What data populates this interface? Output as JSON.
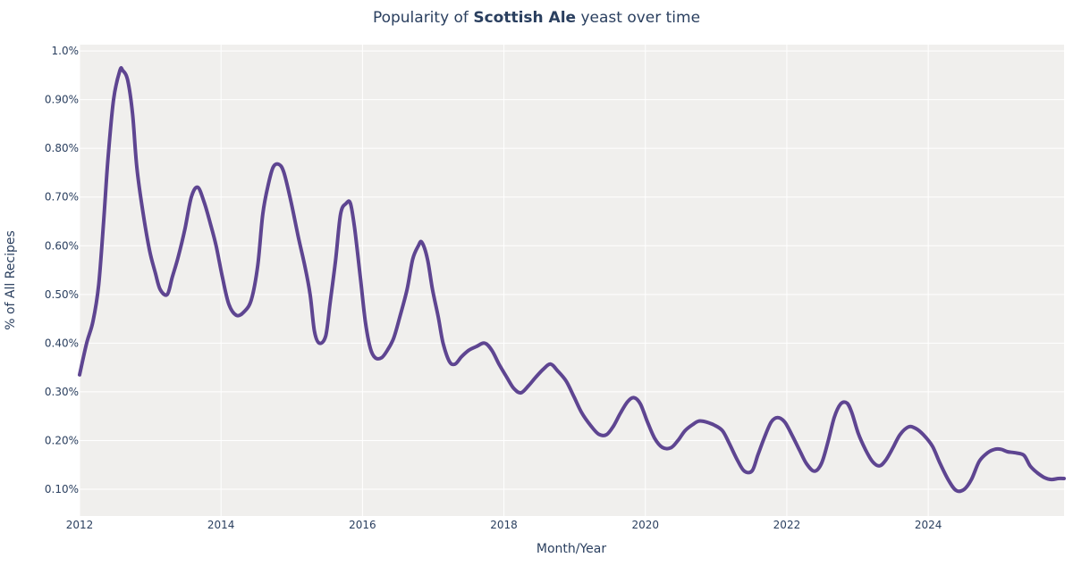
{
  "chart_data": {
    "type": "line",
    "title_prefix": "Popularity of ",
    "title_bold": "Scottish Ale",
    "title_suffix": " yeast over time",
    "xlabel": "Month/Year",
    "ylabel": "% of All Recipes",
    "xlim": [
      2012,
      2025.92
    ],
    "ylim": [
      0.045,
      1.013
    ],
    "x_ticks": [
      2012,
      2014,
      2016,
      2018,
      2020,
      2022,
      2024
    ],
    "x_tick_labels": [
      "2012",
      "2014",
      "2016",
      "2018",
      "2020",
      "2022",
      "2024"
    ],
    "y_ticks": [
      0.1,
      0.2,
      0.3,
      0.4,
      0.5,
      0.6,
      0.7,
      0.8,
      0.9,
      1.0
    ],
    "y_tick_labels": [
      "0.10%",
      "0.20%",
      "0.30%",
      "0.40%",
      "0.50%",
      "0.60%",
      "0.70%",
      "0.80%",
      "0.90%",
      "1.0%"
    ],
    "grid": true,
    "colors": {
      "line": "#5e4591",
      "plot_bg": "#f0efed",
      "grid": "#ffffff",
      "text": "#2a3f5f"
    },
    "series": [
      {
        "points": [
          [
            2012.0,
            0.335
          ],
          [
            2012.1,
            0.4
          ],
          [
            2012.19,
            0.445
          ],
          [
            2012.27,
            0.52
          ],
          [
            2012.34,
            0.65
          ],
          [
            2012.4,
            0.775
          ],
          [
            2012.48,
            0.9
          ],
          [
            2012.57,
            0.96
          ],
          [
            2012.61,
            0.96
          ],
          [
            2012.68,
            0.94
          ],
          [
            2012.75,
            0.87
          ],
          [
            2012.81,
            0.76
          ],
          [
            2012.9,
            0.665
          ],
          [
            2012.99,
            0.59
          ],
          [
            2013.07,
            0.545
          ],
          [
            2013.14,
            0.51
          ],
          [
            2013.24,
            0.5
          ],
          [
            2013.31,
            0.535
          ],
          [
            2013.4,
            0.58
          ],
          [
            2013.49,
            0.635
          ],
          [
            2013.58,
            0.7
          ],
          [
            2013.67,
            0.72
          ],
          [
            2013.76,
            0.69
          ],
          [
            2013.85,
            0.645
          ],
          [
            2013.93,
            0.6
          ],
          [
            2014.02,
            0.535
          ],
          [
            2014.11,
            0.48
          ],
          [
            2014.22,
            0.457
          ],
          [
            2014.33,
            0.465
          ],
          [
            2014.43,
            0.49
          ],
          [
            2014.52,
            0.56
          ],
          [
            2014.59,
            0.665
          ],
          [
            2014.67,
            0.727
          ],
          [
            2014.74,
            0.762
          ],
          [
            2014.82,
            0.767
          ],
          [
            2014.89,
            0.75
          ],
          [
            2014.99,
            0.69
          ],
          [
            2015.09,
            0.62
          ],
          [
            2015.19,
            0.555
          ],
          [
            2015.26,
            0.5
          ],
          [
            2015.32,
            0.425
          ],
          [
            2015.39,
            0.4
          ],
          [
            2015.48,
            0.415
          ],
          [
            2015.54,
            0.48
          ],
          [
            2015.62,
            0.57
          ],
          [
            2015.69,
            0.665
          ],
          [
            2015.77,
            0.687
          ],
          [
            2015.83,
            0.687
          ],
          [
            2015.89,
            0.635
          ],
          [
            2015.97,
            0.535
          ],
          [
            2016.04,
            0.445
          ],
          [
            2016.11,
            0.39
          ],
          [
            2016.18,
            0.37
          ],
          [
            2016.27,
            0.37
          ],
          [
            2016.35,
            0.385
          ],
          [
            2016.44,
            0.41
          ],
          [
            2016.53,
            0.455
          ],
          [
            2016.63,
            0.51
          ],
          [
            2016.71,
            0.572
          ],
          [
            2016.79,
            0.6
          ],
          [
            2016.84,
            0.607
          ],
          [
            2016.92,
            0.572
          ],
          [
            2016.99,
            0.51
          ],
          [
            2017.07,
            0.455
          ],
          [
            2017.14,
            0.4
          ],
          [
            2017.23,
            0.362
          ],
          [
            2017.31,
            0.357
          ],
          [
            2017.4,
            0.372
          ],
          [
            2017.5,
            0.385
          ],
          [
            2017.61,
            0.393
          ],
          [
            2017.73,
            0.4
          ],
          [
            2017.83,
            0.385
          ],
          [
            2017.93,
            0.357
          ],
          [
            2018.04,
            0.33
          ],
          [
            2018.14,
            0.307
          ],
          [
            2018.24,
            0.298
          ],
          [
            2018.35,
            0.313
          ],
          [
            2018.45,
            0.33
          ],
          [
            2018.56,
            0.347
          ],
          [
            2018.66,
            0.357
          ],
          [
            2018.76,
            0.343
          ],
          [
            2018.88,
            0.322
          ],
          [
            2018.99,
            0.29
          ],
          [
            2019.1,
            0.257
          ],
          [
            2019.23,
            0.23
          ],
          [
            2019.34,
            0.213
          ],
          [
            2019.45,
            0.212
          ],
          [
            2019.55,
            0.23
          ],
          [
            2019.65,
            0.257
          ],
          [
            2019.75,
            0.28
          ],
          [
            2019.84,
            0.288
          ],
          [
            2019.93,
            0.275
          ],
          [
            2020.03,
            0.238
          ],
          [
            2020.13,
            0.205
          ],
          [
            2020.24,
            0.186
          ],
          [
            2020.36,
            0.185
          ],
          [
            2020.46,
            0.2
          ],
          [
            2020.56,
            0.22
          ],
          [
            2020.67,
            0.233
          ],
          [
            2020.76,
            0.24
          ],
          [
            2020.86,
            0.238
          ],
          [
            2020.97,
            0.232
          ],
          [
            2021.09,
            0.22
          ],
          [
            2021.19,
            0.193
          ],
          [
            2021.3,
            0.16
          ],
          [
            2021.4,
            0.137
          ],
          [
            2021.51,
            0.138
          ],
          [
            2021.59,
            0.17
          ],
          [
            2021.68,
            0.205
          ],
          [
            2021.78,
            0.238
          ],
          [
            2021.87,
            0.247
          ],
          [
            2021.97,
            0.238
          ],
          [
            2022.07,
            0.212
          ],
          [
            2022.18,
            0.18
          ],
          [
            2022.28,
            0.152
          ],
          [
            2022.39,
            0.137
          ],
          [
            2022.49,
            0.153
          ],
          [
            2022.58,
            0.196
          ],
          [
            2022.67,
            0.247
          ],
          [
            2022.76,
            0.275
          ],
          [
            2022.85,
            0.277
          ],
          [
            2022.92,
            0.257
          ],
          [
            2023.01,
            0.215
          ],
          [
            2023.11,
            0.182
          ],
          [
            2023.21,
            0.157
          ],
          [
            2023.31,
            0.148
          ],
          [
            2023.4,
            0.16
          ],
          [
            2023.5,
            0.185
          ],
          [
            2023.6,
            0.212
          ],
          [
            2023.72,
            0.228
          ],
          [
            2023.82,
            0.225
          ],
          [
            2023.93,
            0.212
          ],
          [
            2024.06,
            0.188
          ],
          [
            2024.17,
            0.152
          ],
          [
            2024.3,
            0.115
          ],
          [
            2024.4,
            0.097
          ],
          [
            2024.51,
            0.1
          ],
          [
            2024.61,
            0.12
          ],
          [
            2024.72,
            0.157
          ],
          [
            2024.84,
            0.175
          ],
          [
            2024.94,
            0.182
          ],
          [
            2025.03,
            0.182
          ],
          [
            2025.12,
            0.177
          ],
          [
            2025.22,
            0.175
          ],
          [
            2025.35,
            0.17
          ],
          [
            2025.44,
            0.148
          ],
          [
            2025.54,
            0.134
          ],
          [
            2025.64,
            0.124
          ],
          [
            2025.74,
            0.12
          ],
          [
            2025.84,
            0.122
          ],
          [
            2025.92,
            0.122
          ]
        ]
      }
    ]
  }
}
